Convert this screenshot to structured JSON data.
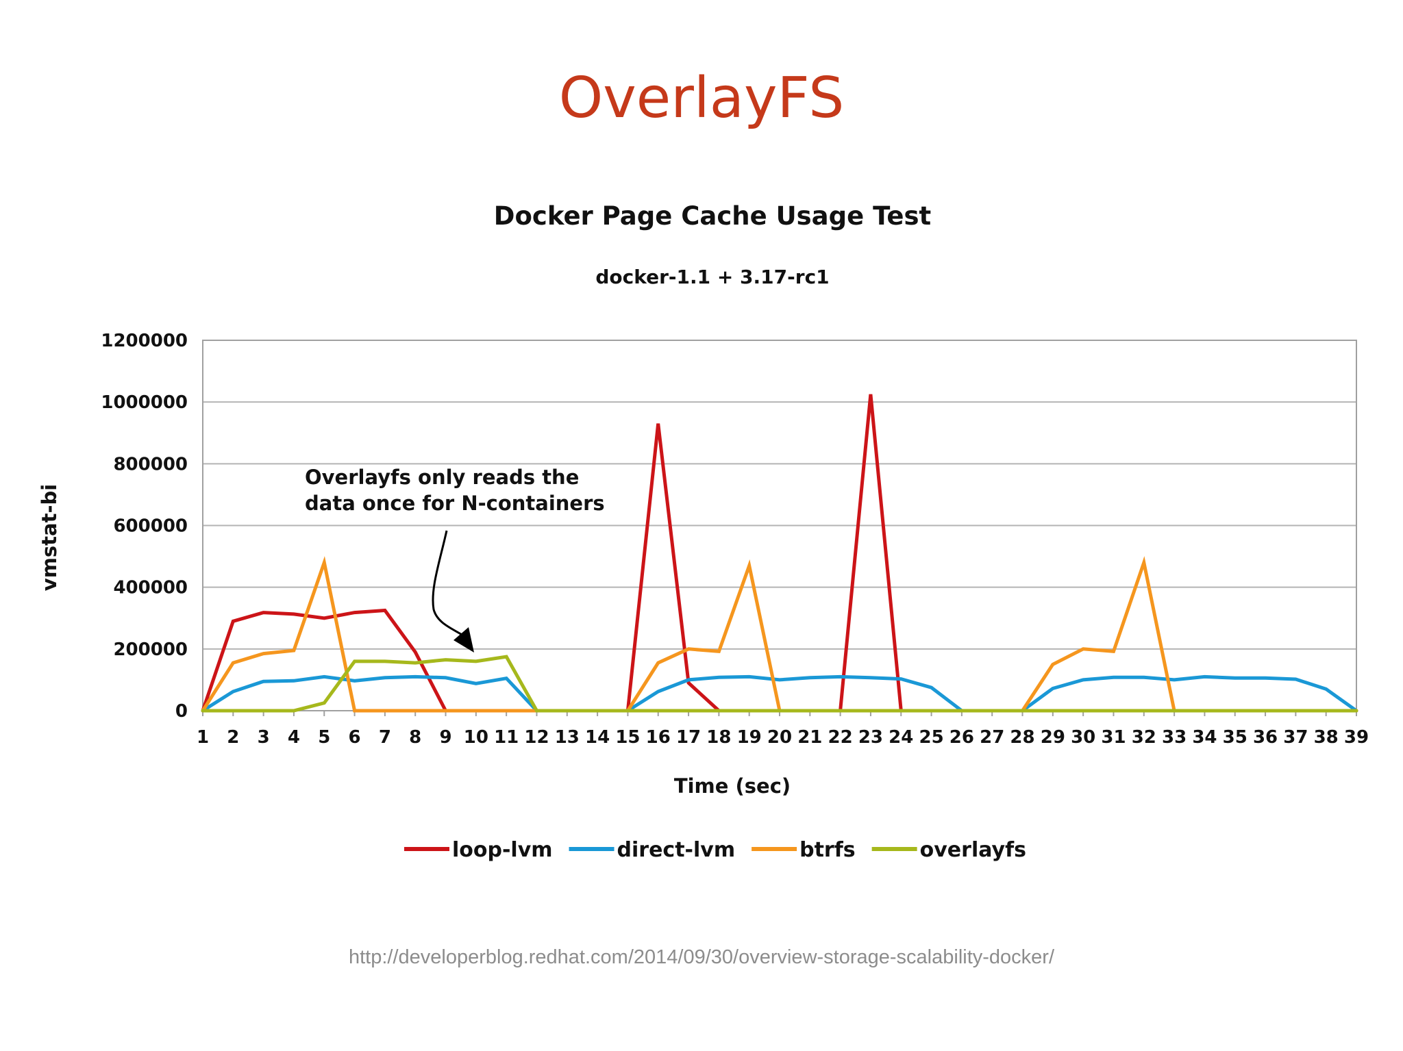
{
  "slide": {
    "title": "OverlayFS",
    "source_url": "http://developerblog.redhat.com/2014/09/30/overview-storage-scalability-docker/"
  },
  "chart_data": {
    "type": "line",
    "title": "Docker Page Cache Usage Test",
    "subtitle": "docker-1.1 + 3.17-rc1",
    "xlabel": "Time (sec)",
    "ylabel": "vmstat-bi",
    "ylim": [
      0,
      1200000
    ],
    "yticks": [
      0,
      200000,
      400000,
      600000,
      800000,
      1000000,
      1200000
    ],
    "ytick_labels": [
      "0",
      "200000",
      "400000",
      "600000",
      "800000",
      "1000000",
      "1200000"
    ],
    "grid": true,
    "legend_position": "bottom",
    "x": [
      1,
      2,
      3,
      4,
      5,
      6,
      7,
      8,
      9,
      10,
      11,
      12,
      13,
      14,
      15,
      16,
      17,
      18,
      19,
      20,
      21,
      22,
      23,
      24,
      25,
      26,
      27,
      28,
      29,
      30,
      31,
      32,
      33,
      34,
      35,
      36,
      37,
      38,
      39
    ],
    "series": [
      {
        "name": "loop-lvm",
        "color": "#cc1418",
        "values": [
          0,
          290000,
          318000,
          313000,
          300000,
          318000,
          325000,
          190000,
          0,
          0,
          0,
          0,
          0,
          0,
          0,
          930000,
          90000,
          0,
          0,
          0,
          0,
          0,
          1025000,
          0,
          0,
          0,
          0,
          0,
          0,
          0,
          0,
          0,
          0,
          0,
          0,
          0,
          0,
          0,
          0
        ]
      },
      {
        "name": "direct-lvm",
        "color": "#1a98d6",
        "values": [
          0,
          62000,
          95000,
          97000,
          110000,
          97000,
          107000,
          110000,
          107000,
          88000,
          105000,
          0,
          0,
          0,
          0,
          62000,
          100000,
          108000,
          110000,
          100000,
          107000,
          110000,
          107000,
          103000,
          75000,
          0,
          0,
          0,
          72000,
          100000,
          108000,
          108000,
          100000,
          110000,
          106000,
          106000,
          102000,
          70000,
          0
        ]
      },
      {
        "name": "btrfs",
        "color": "#f5961e",
        "values": [
          0,
          155000,
          185000,
          195000,
          480000,
          0,
          0,
          0,
          0,
          0,
          0,
          0,
          0,
          0,
          0,
          155000,
          200000,
          192000,
          470000,
          0,
          0,
          0,
          0,
          0,
          0,
          0,
          0,
          0,
          150000,
          200000,
          192000,
          480000,
          0,
          0,
          0,
          0,
          0,
          0,
          0
        ]
      },
      {
        "name": "overlayfs",
        "color": "#a6b81c",
        "values": [
          0,
          0,
          0,
          0,
          25000,
          160000,
          160000,
          155000,
          165000,
          160000,
          175000,
          0,
          0,
          0,
          0,
          0,
          0,
          0,
          0,
          0,
          0,
          0,
          0,
          0,
          0,
          0,
          0,
          0,
          0,
          0,
          0,
          0,
          0,
          0,
          0,
          0,
          0,
          0,
          0
        ]
      }
    ],
    "annotation": {
      "lines": [
        "Overlayfs only reads the",
        "data once for N-containers"
      ],
      "points_to_x": 10
    }
  }
}
